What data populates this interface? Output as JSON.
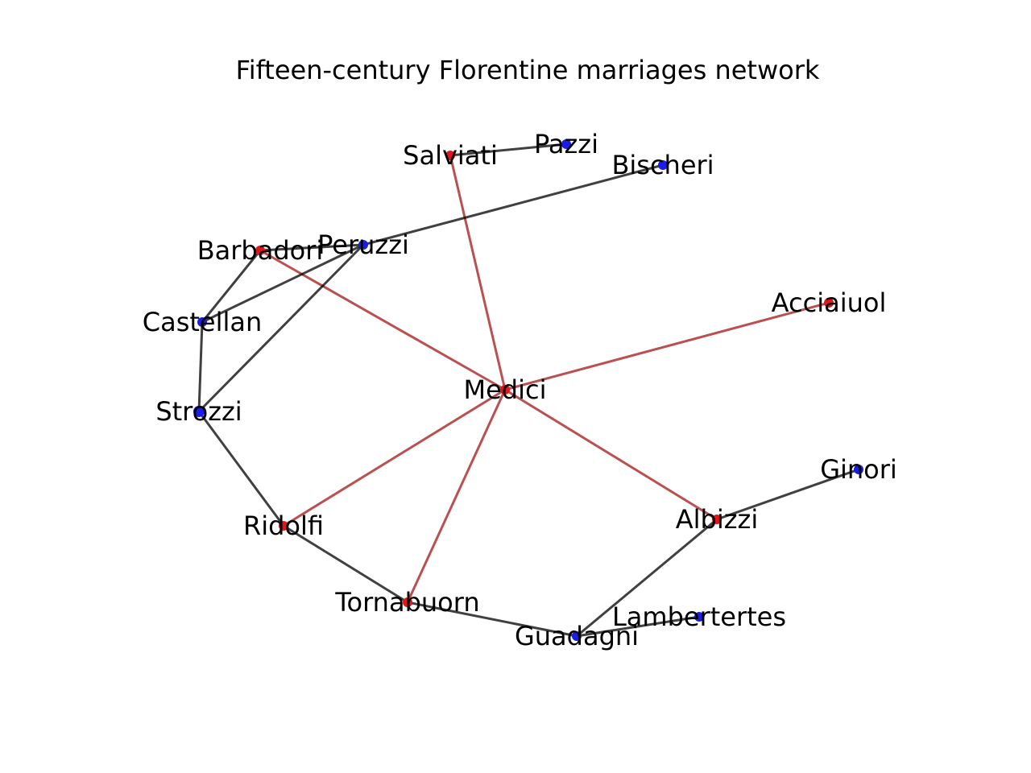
{
  "title": "Fifteen-century Florentine marriages network",
  "colors": {
    "highlight_node": "#e0161c",
    "normal_node": "#1c1ce8",
    "highlight_edge": "#a31515",
    "normal_edge": "#000000",
    "label": "#000000"
  },
  "graph": {
    "nodes": [
      {
        "id": "Salviati",
        "label": "Salviati",
        "group": "highlight"
      },
      {
        "id": "Pazzi",
        "label": "Pazzi",
        "group": "normal"
      },
      {
        "id": "Bischeri",
        "label": "Bischeri",
        "group": "normal"
      },
      {
        "id": "Barbadori",
        "label": "Barbadori",
        "group": "highlight"
      },
      {
        "id": "Peruzzi",
        "label": "Peruzzi",
        "group": "normal"
      },
      {
        "id": "Acciaiuol",
        "label": "Acciaiuol",
        "group": "highlight"
      },
      {
        "id": "Castellan",
        "label": "Castellan",
        "group": "normal"
      },
      {
        "id": "Medici",
        "label": "Medici",
        "group": "highlight"
      },
      {
        "id": "Strozzi",
        "label": "Strozzi",
        "group": "normal"
      },
      {
        "id": "Ginori",
        "label": "Ginori",
        "group": "normal"
      },
      {
        "id": "Ridolfi",
        "label": "Ridolfi",
        "group": "highlight"
      },
      {
        "id": "Albizzi",
        "label": "Albizzi",
        "group": "highlight"
      },
      {
        "id": "Tornabuorn",
        "label": "Tornabuorn",
        "group": "highlight"
      },
      {
        "id": "Lambertertes",
        "label": "Lambertertes",
        "group": "normal"
      },
      {
        "id": "Guadagni",
        "label": "Guadagni",
        "group": "normal"
      }
    ],
    "edges": [
      {
        "source": "Medici",
        "target": "Salviati",
        "group": "highlight"
      },
      {
        "source": "Medici",
        "target": "Barbadori",
        "group": "highlight"
      },
      {
        "source": "Medici",
        "target": "Acciaiuol",
        "group": "highlight"
      },
      {
        "source": "Medici",
        "target": "Ridolfi",
        "group": "highlight"
      },
      {
        "source": "Medici",
        "target": "Tornabuorn",
        "group": "highlight"
      },
      {
        "source": "Medici",
        "target": "Albizzi",
        "group": "highlight"
      },
      {
        "source": "Salviati",
        "target": "Pazzi",
        "group": "normal"
      },
      {
        "source": "Peruzzi",
        "target": "Bischeri",
        "group": "normal"
      },
      {
        "source": "Barbadori",
        "target": "Peruzzi",
        "group": "normal"
      },
      {
        "source": "Barbadori",
        "target": "Castellan",
        "group": "normal"
      },
      {
        "source": "Peruzzi",
        "target": "Castellan",
        "group": "normal"
      },
      {
        "source": "Peruzzi",
        "target": "Strozzi",
        "group": "normal"
      },
      {
        "source": "Castellan",
        "target": "Strozzi",
        "group": "normal"
      },
      {
        "source": "Strozzi",
        "target": "Ridolfi",
        "group": "normal"
      },
      {
        "source": "Ridolfi",
        "target": "Tornabuorn",
        "group": "normal"
      },
      {
        "source": "Tornabuorn",
        "target": "Guadagni",
        "group": "normal"
      },
      {
        "source": "Guadagni",
        "target": "Albizzi",
        "group": "normal"
      },
      {
        "source": "Guadagni",
        "target": "Lambertertes",
        "group": "normal"
      },
      {
        "source": "Albizzi",
        "target": "Ginori",
        "group": "normal"
      }
    ]
  }
}
